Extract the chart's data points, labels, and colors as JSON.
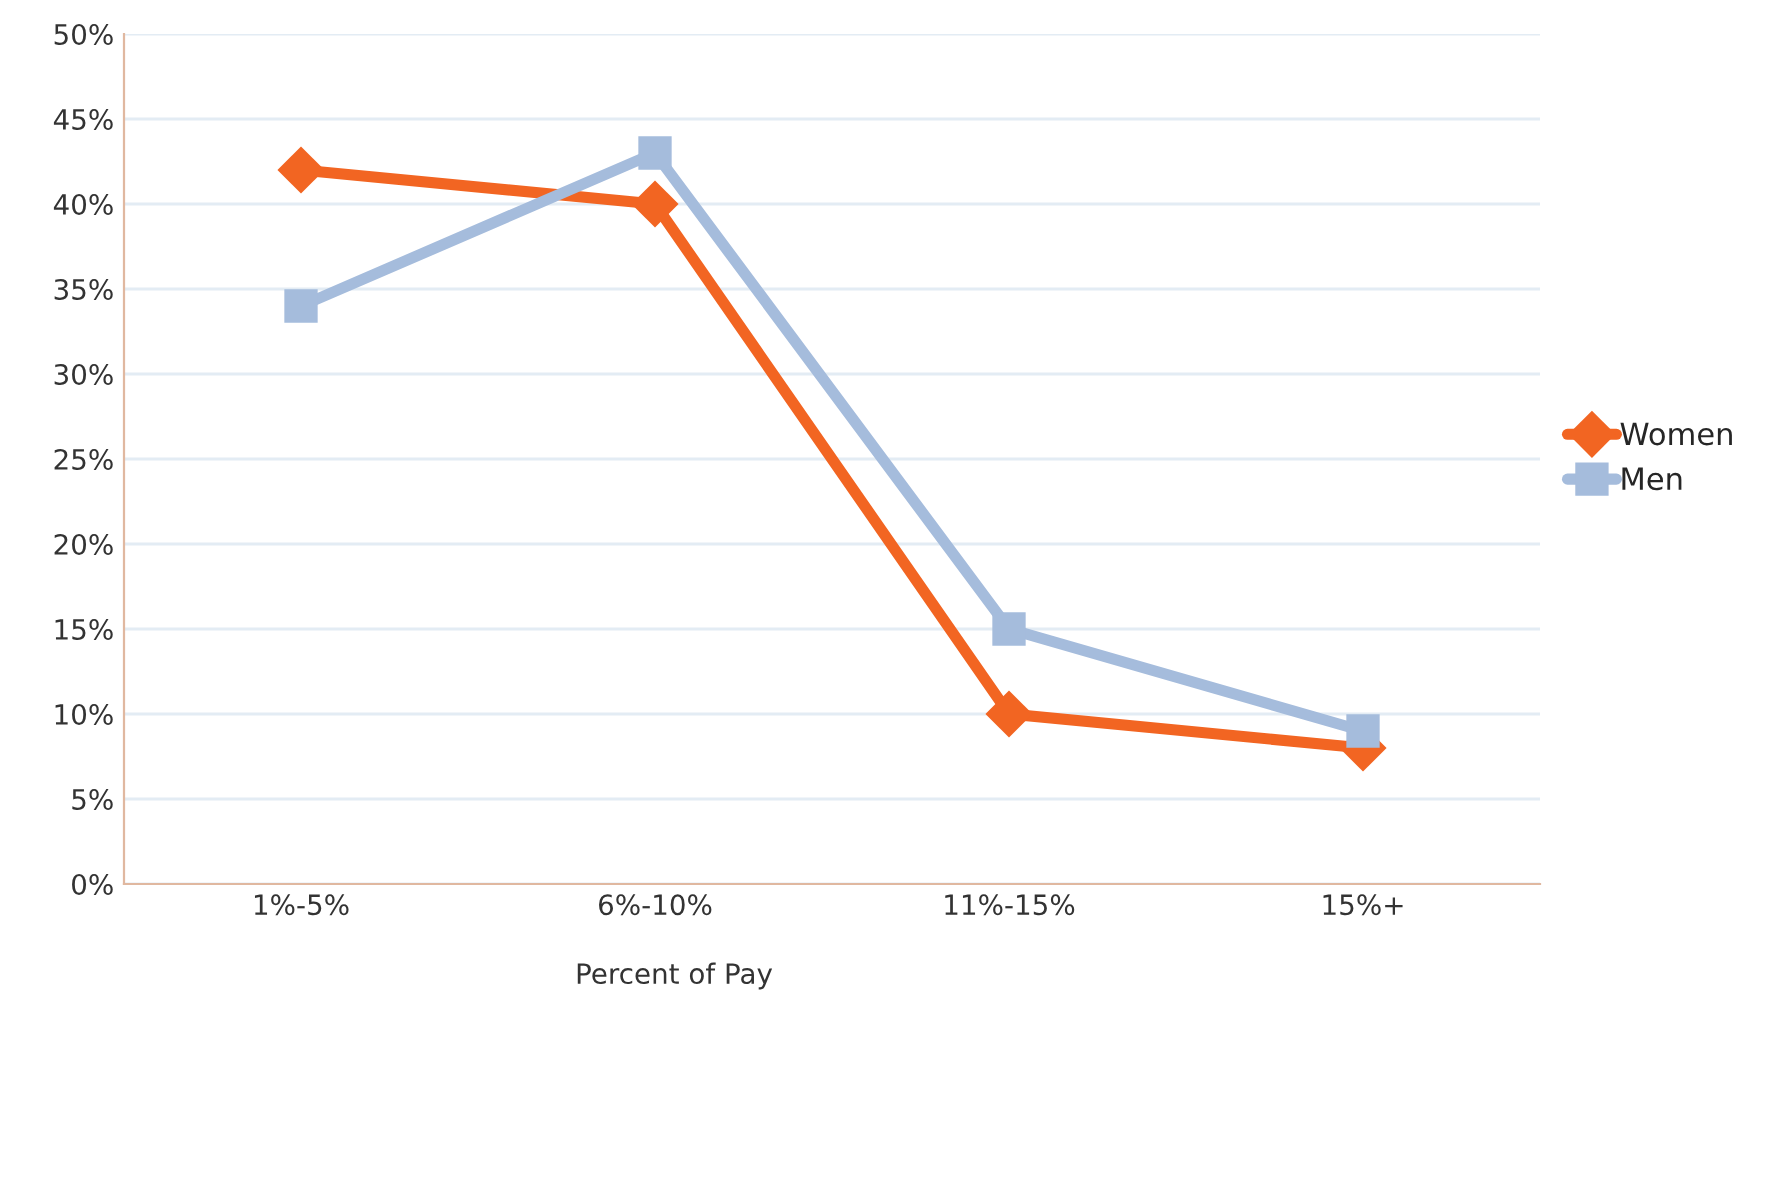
{
  "chart_data": {
    "type": "line",
    "xlabel": "Percent of Pay",
    "categories": [
      "1%-5%",
      "6%-10%",
      "11%-15%",
      "15%+"
    ],
    "series": [
      {
        "name": "Women",
        "color": "#f26522",
        "values": [
          42,
          40,
          10,
          8
        ],
        "marker": "diamond"
      },
      {
        "name": "Men",
        "color": "#a5bcdc",
        "values": [
          34,
          43,
          15,
          9
        ],
        "marker": "square"
      }
    ],
    "ylim": [
      0,
      50
    ],
    "yticks": [
      {
        "value": 0,
        "label": "0%"
      },
      {
        "value": 5,
        "label": "5%"
      },
      {
        "value": 10,
        "label": "10%"
      },
      {
        "value": 15,
        "label": "15%"
      },
      {
        "value": 20,
        "label": "20%"
      },
      {
        "value": 25,
        "label": "25%"
      },
      {
        "value": 30,
        "label": "30%"
      },
      {
        "value": 35,
        "label": "35%"
      },
      {
        "value": 40,
        "label": "40%"
      },
      {
        "value": 45,
        "label": "45%"
      },
      {
        "value": 50,
        "label": "50%"
      }
    ],
    "grid": "y",
    "legend": "right",
    "line_style": "solid"
  }
}
